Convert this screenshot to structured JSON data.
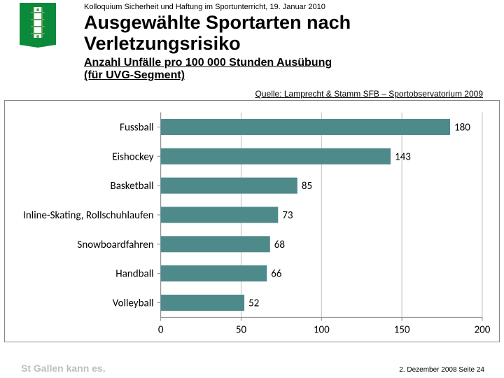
{
  "header": {
    "preheader": "Kolloquium Sicherheit und Haftung im Sportunterricht, 19. Januar 2010",
    "title_line1": "Ausgewählte Sportarten nach",
    "title_line2": "Verletzungsrisiko",
    "subtitle_line1": "Anzahl Unfälle pro 100 000 Stunden Ausübung",
    "subtitle_line2": "(für UVG-Segment)"
  },
  "source": "Quelle: Lamprecht & Stamm SFB – Sportobservatorium 2009",
  "chart": {
    "type": "bar-horizontal",
    "categories": [
      "Fussball",
      "Eishockey",
      "Basketball",
      "Inline-Skating, Rollschuhlaufen",
      "Snowboardfahren",
      "Handball",
      "Volleyball"
    ],
    "values": [
      180,
      143,
      85,
      73,
      68,
      66,
      52
    ],
    "bar_color": "#4f8a8b",
    "xlim": [
      0,
      200
    ],
    "xtick_step": 50,
    "xticks": [
      0,
      50,
      100,
      150,
      200
    ],
    "grid_color": "#bfbfbf",
    "axis_color": "#888888",
    "background_color": "#ffffff",
    "label_fontsize": 15,
    "tick_fontsize": 15,
    "value_fontsize": 15,
    "bar_height_ratio": 0.55
  },
  "footer": {
    "brand_prefix": "St Gallen",
    "brand_suffix": " kann es.",
    "date": "2. Dezember 2008    Seite 24"
  },
  "logo": {
    "bg_color": "#0a8a3a",
    "fg_color": "#ffffff"
  }
}
